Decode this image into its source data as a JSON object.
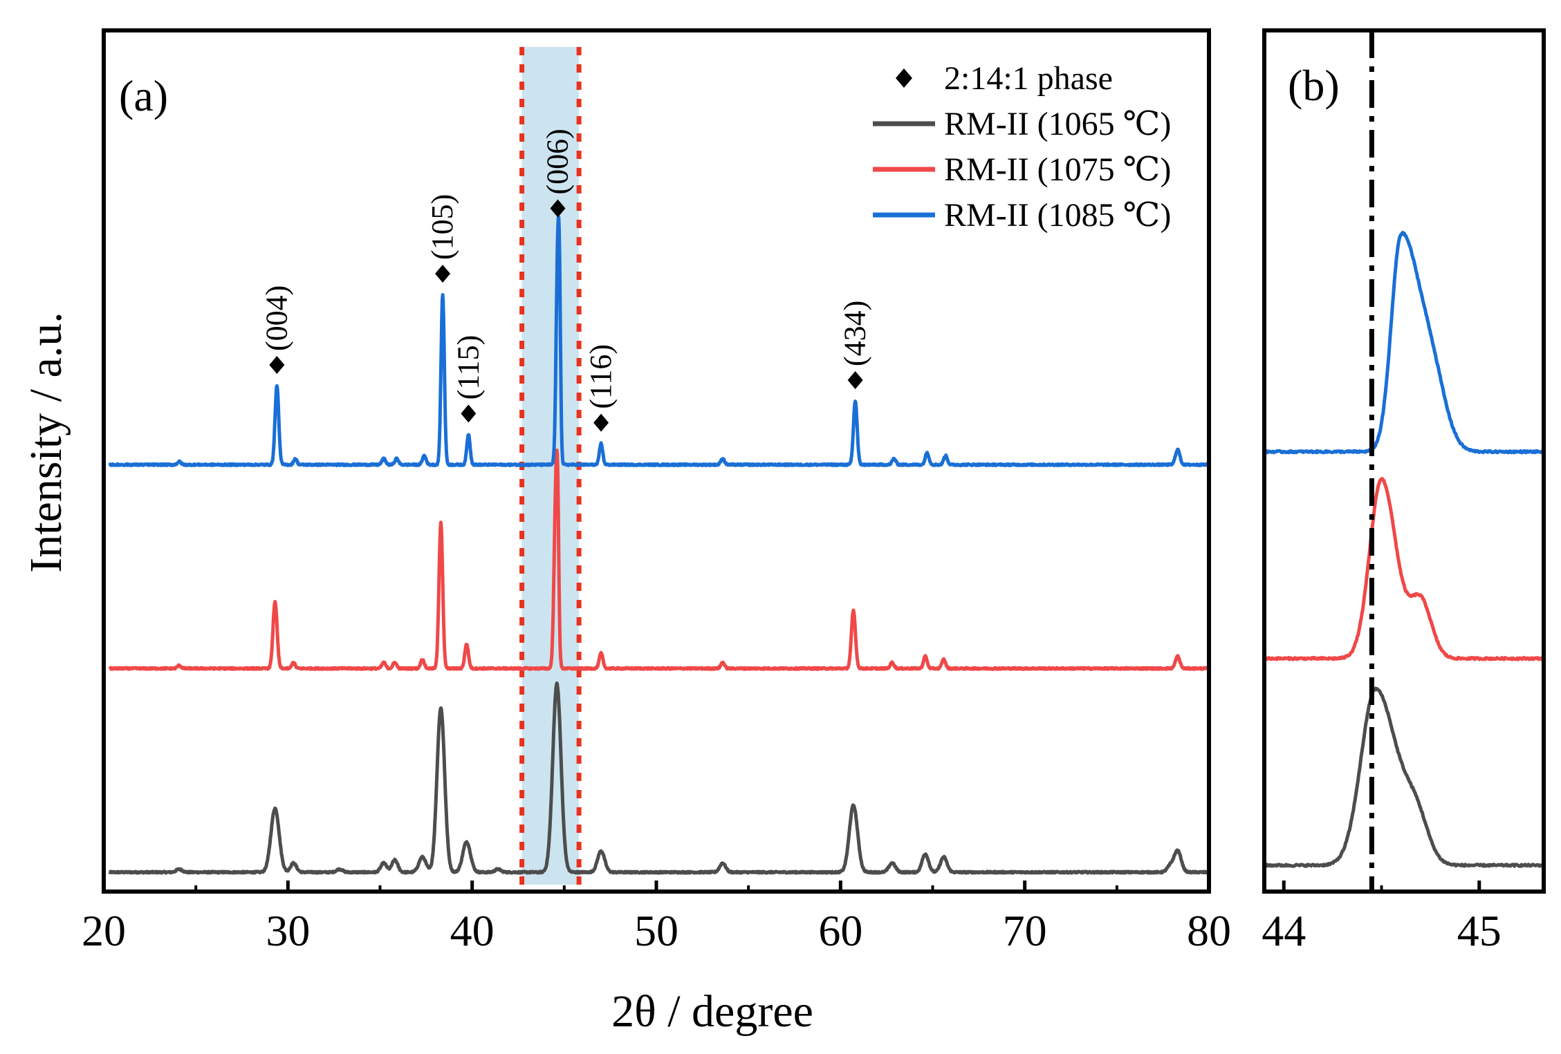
{
  "x_axis_label": "2θ / degree",
  "y_axis_label": "Intensity / a.u.",
  "colors": {
    "s1065": "#4d4d4d",
    "s1075": "#f04848",
    "s1085": "#1a6fd6",
    "highlight": "#cce4ef",
    "dotted": "#e8321f",
    "axis": "#000000"
  },
  "legend": [
    {
      "key": "phase",
      "label": "2:14:1 phase",
      "marker": "diamond"
    },
    {
      "key": "s1065",
      "label": "RM-II (1065 ℃)",
      "marker": "line"
    },
    {
      "key": "s1075",
      "label": "RM-II (1075 ℃)",
      "marker": "line"
    },
    {
      "key": "s1085",
      "label": "RM-II (1085 ℃)",
      "marker": "line"
    }
  ],
  "chart_data": [
    {
      "panel_label": "(a)",
      "type": "line",
      "xlim": [
        20,
        80
      ],
      "x_ticks": [
        20,
        30,
        40,
        50,
        60,
        70,
        80
      ],
      "y_ticks_shown": false,
      "highlight_band": [
        42.7,
        45.8
      ],
      "dotted_lines": [
        42.7,
        45.8
      ],
      "baseline_noise": 0.0025,
      "series": [
        {
          "name": "RM-II (1065 ℃)",
          "color_key": "s1065",
          "offset": 0.0,
          "broad": 1.6,
          "peaks": [
            [
              24.1,
              0.01,
              0.1
            ],
            [
              29.3,
              0.21,
              0.14
            ],
            [
              30.3,
              0.03,
              0.1
            ],
            [
              32.8,
              0.01,
              0.1
            ],
            [
              35.2,
              0.03,
              0.1
            ],
            [
              35.8,
              0.04,
              0.1
            ],
            [
              37.3,
              0.05,
              0.12
            ],
            [
              38.3,
              0.54,
              0.13
            ],
            [
              39.7,
              0.1,
              0.13
            ],
            [
              41.4,
              0.01,
              0.1
            ],
            [
              44.6,
              0.62,
              0.14
            ],
            [
              47.0,
              0.07,
              0.12
            ],
            [
              53.6,
              0.03,
              0.1
            ],
            [
              60.7,
              0.22,
              0.14
            ],
            [
              62.8,
              0.03,
              0.11
            ],
            [
              64.6,
              0.06,
              0.11
            ],
            [
              65.6,
              0.05,
              0.11
            ],
            [
              77.9,
              0.02,
              0.11
            ],
            [
              78.3,
              0.07,
              0.12
            ]
          ]
        },
        {
          "name": "RM-II (1075 ℃)",
          "color_key": "s1075",
          "offset": 0.67,
          "broad": 1.0,
          "peaks": [
            [
              24.1,
              0.01,
              0.1
            ],
            [
              29.3,
              0.22,
              0.11
            ],
            [
              30.3,
              0.02,
              0.09
            ],
            [
              35.2,
              0.02,
              0.1
            ],
            [
              35.8,
              0.02,
              0.1
            ],
            [
              37.3,
              0.03,
              0.1
            ],
            [
              38.3,
              0.48,
              0.1
            ],
            [
              39.7,
              0.08,
              0.1
            ],
            [
              44.55,
              0.59,
              0.1
            ],
            [
              44.65,
              0.28,
              0.06
            ],
            [
              47.0,
              0.05,
              0.1
            ],
            [
              53.6,
              0.02,
              0.1
            ],
            [
              60.7,
              0.19,
              0.11
            ],
            [
              62.8,
              0.02,
              0.1
            ],
            [
              64.6,
              0.04,
              0.1
            ],
            [
              65.6,
              0.03,
              0.1
            ],
            [
              78.3,
              0.04,
              0.12
            ]
          ]
        },
        {
          "name": "RM-II (1085 ℃)",
          "color_key": "s1085",
          "offset": 1.34,
          "broad": 1.0,
          "peaks": [
            [
              24.1,
              0.01,
              0.1
            ],
            [
              29.4,
              0.26,
              0.1
            ],
            [
              30.4,
              0.02,
              0.09
            ],
            [
              35.2,
              0.02,
              0.1
            ],
            [
              35.9,
              0.02,
              0.1
            ],
            [
              37.4,
              0.03,
              0.1
            ],
            [
              38.4,
              0.56,
              0.09
            ],
            [
              39.8,
              0.1,
              0.09
            ],
            [
              44.65,
              0.7,
              0.09
            ],
            [
              44.75,
              0.3,
              0.06
            ],
            [
              47.0,
              0.07,
              0.09
            ],
            [
              53.6,
              0.02,
              0.1
            ],
            [
              60.8,
              0.21,
              0.1
            ],
            [
              62.9,
              0.02,
              0.1
            ],
            [
              64.7,
              0.04,
              0.1
            ],
            [
              65.7,
              0.03,
              0.1
            ],
            [
              78.3,
              0.05,
              0.12
            ]
          ]
        }
      ],
      "annotations": [
        {
          "x": 29.4,
          "label": "(004)"
        },
        {
          "x": 38.4,
          "label": "(105)"
        },
        {
          "x": 39.8,
          "label": "(115)"
        },
        {
          "x": 44.65,
          "label": "(006)"
        },
        {
          "x": 47.0,
          "label": "(116)"
        },
        {
          "x": 60.8,
          "label": "(434)"
        }
      ]
    },
    {
      "panel_label": "(b)",
      "type": "line",
      "xlim": [
        43.9,
        45.33
      ],
      "x_ticks": [
        44,
        45
      ],
      "reference_line": 44.45,
      "series": [
        {
          "name": "RM-II (1065 ℃)",
          "color_key": "s1065",
          "offset": 0.0,
          "peak": 44.47,
          "height": 0.58,
          "sigma_left": 0.075,
          "sigma_right": 0.11,
          "shoulder": [
            44.68,
            0.13,
            0.06
          ]
        },
        {
          "name": "RM-II (1075 ℃)",
          "color_key": "s1075",
          "offset": 0.68,
          "peak": 44.5,
          "height": 0.59,
          "sigma_left": 0.06,
          "sigma_right": 0.075,
          "shoulder": [
            44.7,
            0.19,
            0.055
          ]
        },
        {
          "name": "RM-II (1085 ℃)",
          "color_key": "s1085",
          "offset": 1.36,
          "peak": 44.6,
          "height": 0.7,
          "sigma_left": 0.05,
          "sigma_right": 0.09,
          "shoulder": [
            44.76,
            0.22,
            0.07
          ]
        }
      ]
    }
  ]
}
